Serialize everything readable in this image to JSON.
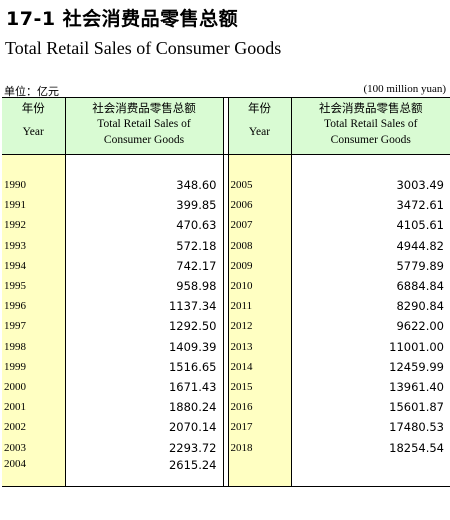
{
  "title": {
    "chinese": "17-1  社会消费品零售总额",
    "english": "Total Retail Sales of Consumer Goods"
  },
  "unit": {
    "chinese": "单位：亿元",
    "english": "(100 million yuan)"
  },
  "headers": {
    "year_cn": "年份",
    "year_en": "Year",
    "value_cn": "社会消费品零售总额",
    "value_en_line1": "Total Retail Sales of",
    "value_en_line2": "Consumer Goods"
  },
  "left": [
    {
      "year": "1990",
      "value": "348.60"
    },
    {
      "year": "1991",
      "value": "399.85"
    },
    {
      "year": "1992",
      "value": "470.63"
    },
    {
      "year": "1993",
      "value": "572.18"
    },
    {
      "year": "1994",
      "value": "742.17"
    },
    {
      "year": "1995",
      "value": "958.98"
    },
    {
      "year": "1996",
      "value": "1137.34"
    },
    {
      "year": "1997",
      "value": "1292.50"
    },
    {
      "year": "1998",
      "value": "1409.39"
    },
    {
      "year": "1999",
      "value": "1516.65"
    },
    {
      "year": "2000",
      "value": "1671.43"
    },
    {
      "year": "2001",
      "value": "1880.24"
    },
    {
      "year": "2002",
      "value": "2070.14"
    },
    {
      "year": "2003",
      "value": "2293.72"
    },
    {
      "year": "2004",
      "value": "2615.24"
    }
  ],
  "right": [
    {
      "year": "2005",
      "value": "3003.49"
    },
    {
      "year": "2006",
      "value": "3472.61"
    },
    {
      "year": "2007",
      "value": "4105.61"
    },
    {
      "year": "2008",
      "value": "4944.82"
    },
    {
      "year": "2009",
      "value": "5779.89"
    },
    {
      "year": "2010",
      "value": "6884.84"
    },
    {
      "year": "2011",
      "value": "8290.84"
    },
    {
      "year": "2012",
      "value": "9622.00"
    },
    {
      "year": "2013",
      "value": "11001.00"
    },
    {
      "year": "2014",
      "value": "12459.99"
    },
    {
      "year": "2015",
      "value": "13961.40"
    },
    {
      "year": "2016",
      "value": "15601.87"
    },
    {
      "year": "2017",
      "value": "17480.53"
    },
    {
      "year": "2018",
      "value": "18254.54"
    },
    {
      "year": "",
      "value": ""
    }
  ]
}
